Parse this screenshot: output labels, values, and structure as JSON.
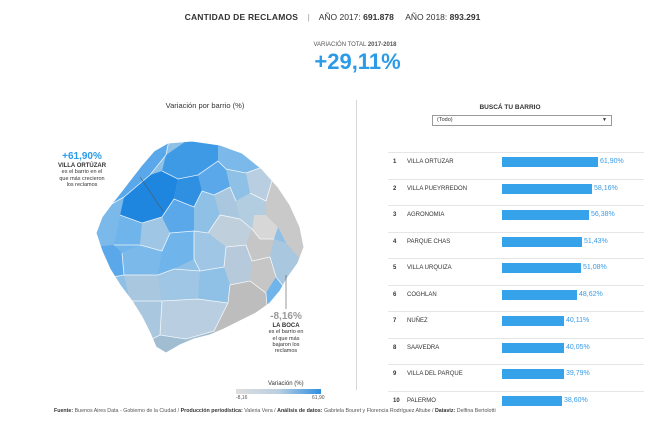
{
  "header": {
    "title": "CANTIDAD DE RECLAMOS",
    "separator": "|",
    "year2017_label": "AÑO 2017:",
    "year2017_value": "691.878",
    "year2018_label": "AÑO 2018:",
    "year2018_value": "893.291"
  },
  "variation": {
    "label": "VARIACIÓN TOTAL",
    "years": "2017-2018",
    "value": "+29,11%"
  },
  "map": {
    "title": "Variación por barrio (%)",
    "top_callout": {
      "pct": "+61,90%",
      "name": "VILLA ORTÚZAR",
      "line1": "es el barrio en el",
      "line2": "que más crecieron",
      "line3": "los reclamos"
    },
    "bottom_callout": {
      "pct": "-8,16%",
      "name": "LA BOCA",
      "line1": "es el barrio en",
      "line2": "el que más",
      "line3": "bajaron los",
      "line4": "reclamos"
    },
    "legend": {
      "title": "Variación (%)",
      "min": "-8,16",
      "max": "61,90"
    },
    "colors": {
      "high": "#2f8fe0",
      "mid": "#6fb4ea",
      "low": "#a9c8df",
      "lowest": "#bdbdbd"
    }
  },
  "ranking": {
    "title": "BUSCÁ TU BARRIO",
    "select_value": "(Todo)",
    "bar_color": "#36a2ea",
    "rows": [
      {
        "num": "1",
        "name": "VILLA ORTUZAR",
        "pct": "61,90%",
        "value": 61.9
      },
      {
        "num": "2",
        "name": "VILLA PUEYRREDON",
        "pct": "58,16%",
        "value": 58.16
      },
      {
        "num": "3",
        "name": "AGRONOMIA",
        "pct": "56,38%",
        "value": 56.38
      },
      {
        "num": "4",
        "name": "PARQUE CHAS",
        "pct": "51,43%",
        "value": 51.43
      },
      {
        "num": "5",
        "name": "VILLA URQUIZA",
        "pct": "51,08%",
        "value": 51.08
      },
      {
        "num": "6",
        "name": "COGHLAN",
        "pct": "48,62%",
        "value": 48.62
      },
      {
        "num": "7",
        "name": "NUÑEZ",
        "pct": "40,11%",
        "value": 40.11
      },
      {
        "num": "8",
        "name": "SAAVEDRA",
        "pct": "40,05%",
        "value": 40.05
      },
      {
        "num": "9",
        "name": "VILLA DEL PARQUE",
        "pct": "39,79%",
        "value": 39.79
      },
      {
        "num": "10",
        "name": "PALERMO",
        "pct": "38,60%",
        "value": 38.6
      }
    ]
  },
  "footer": {
    "source_label": "Fuente:",
    "source": "Buenos Aires Data - Gobierno de la Ciudad /",
    "production_label": "Producción periodística:",
    "production": "Valeria Vera /",
    "analysis_label": "Análisis de datos:",
    "analysis": "Gabriela Bouret y Florencia Rodríguez Altube /",
    "dataviz_label": "Dataviz:",
    "dataviz": "Delfina Bertolotti"
  }
}
